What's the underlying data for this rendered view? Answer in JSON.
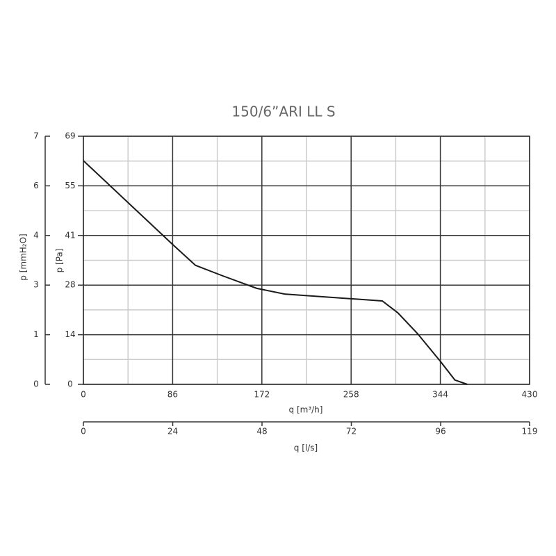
{
  "chart_data": {
    "type": "line",
    "title": "150/6”ARI LL S",
    "xlabel": "q [m³/h]",
    "x2label": "q [l/s]",
    "ylabel": "p [Pa]",
    "y2label": "p [mmH₂O]",
    "xlim": [
      0,
      430
    ],
    "xticks": [
      0,
      86,
      172,
      258,
      344,
      430
    ],
    "x2lim": [
      0,
      119.4
    ],
    "x2ticks": [
      0,
      {
        "value": 23.9,
        "label": "24"
      },
      {
        "value": 47.8,
        "label": "48"
      },
      {
        "value": 71.7,
        "label": "72"
      },
      {
        "value": 95.6,
        "label": "96"
      },
      {
        "value": 119.4,
        "label": "119"
      }
    ],
    "ylim": [
      0,
      69
    ],
    "yticks": [
      0,
      {
        "value": 13.8,
        "label": "14"
      },
      {
        "value": 27.6,
        "label": "28"
      },
      {
        "value": 41.4,
        "label": "41"
      },
      {
        "value": 55.2,
        "label": "55"
      },
      69
    ],
    "y2lim": [
      0,
      7
    ],
    "y2ticks": [
      0,
      {
        "value": 1.4,
        "label": "1"
      },
      {
        "value": 2.8,
        "label": "3"
      },
      {
        "value": 4.2,
        "label": "4"
      },
      {
        "value": 5.6,
        "label": "6"
      },
      7
    ],
    "grid": true,
    "minor_grid": true,
    "x": [
      0,
      86,
      108,
      134,
      167,
      194,
      258,
      288,
      303,
      322,
      344,
      358,
      370
    ],
    "series": [
      {
        "color": "#1a1a1a",
        "values": [
          62.2,
          38.9,
          33.1,
          30.2,
          26.7,
          25.1,
          23.8,
          23.2,
          19.9,
          14.1,
          6.4,
          1.2,
          0
        ]
      }
    ]
  }
}
